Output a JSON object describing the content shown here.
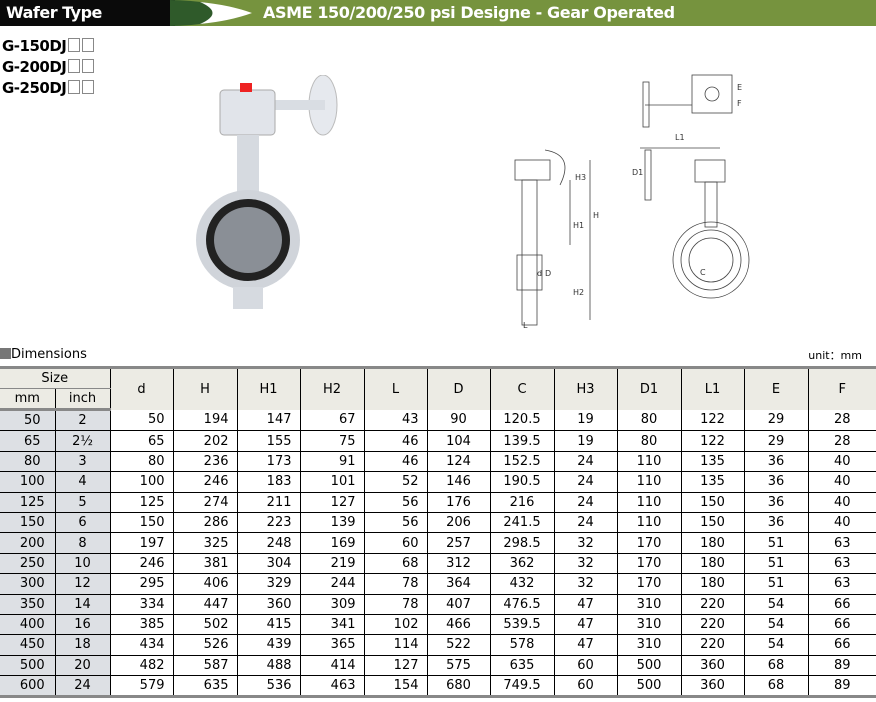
{
  "header": {
    "type": "Wafer Type",
    "subtitle": "ASME 150/200/250 psi Designe - Gear Operated"
  },
  "models": [
    "G-150DJ",
    "G-200DJ",
    "G-250DJ"
  ],
  "section_title": "Dimensions",
  "unit": "unit：mm",
  "drawing_labels": {
    "H3": "H3",
    "H": "H",
    "H1": "H1",
    "H2": "H2",
    "d": "d",
    "D": "D",
    "L": "L",
    "E": "E",
    "F": "F",
    "L1": "L1",
    "D1": "D1",
    "C": "C"
  },
  "table": {
    "size_label": "Size",
    "mm_label": "mm",
    "inch_label": "inch",
    "columns": [
      "d",
      "H",
      "H1",
      "H2",
      "L",
      "D",
      "C",
      "H3",
      "D1",
      "L1",
      "E",
      "F"
    ],
    "rows": [
      [
        "50",
        "2",
        "50",
        "194",
        "147",
        "67",
        "43",
        "90",
        "120.5",
        "19",
        "80",
        "122",
        "29",
        "28"
      ],
      [
        "65",
        "2½",
        "65",
        "202",
        "155",
        "75",
        "46",
        "104",
        "139.5",
        "19",
        "80",
        "122",
        "29",
        "28"
      ],
      [
        "80",
        "3",
        "80",
        "236",
        "173",
        "91",
        "46",
        "124",
        "152.5",
        "24",
        "110",
        "135",
        "36",
        "40"
      ],
      [
        "100",
        "4",
        "100",
        "246",
        "183",
        "101",
        "52",
        "146",
        "190.5",
        "24",
        "110",
        "135",
        "36",
        "40"
      ],
      [
        "125",
        "5",
        "125",
        "274",
        "211",
        "127",
        "56",
        "176",
        "216",
        "24",
        "110",
        "150",
        "36",
        "40"
      ],
      [
        "150",
        "6",
        "150",
        "286",
        "223",
        "139",
        "56",
        "206",
        "241.5",
        "24",
        "110",
        "150",
        "36",
        "40"
      ],
      [
        "200",
        "8",
        "197",
        "325",
        "248",
        "169",
        "60",
        "257",
        "298.5",
        "32",
        "170",
        "180",
        "51",
        "63"
      ],
      [
        "250",
        "10",
        "246",
        "381",
        "304",
        "219",
        "68",
        "312",
        "362",
        "32",
        "170",
        "180",
        "51",
        "63"
      ],
      [
        "300",
        "12",
        "295",
        "406",
        "329",
        "244",
        "78",
        "364",
        "432",
        "32",
        "170",
        "180",
        "51",
        "63"
      ],
      [
        "350",
        "14",
        "334",
        "447",
        "360",
        "309",
        "78",
        "407",
        "476.5",
        "47",
        "310",
        "220",
        "54",
        "66"
      ],
      [
        "400",
        "16",
        "385",
        "502",
        "415",
        "341",
        "102",
        "466",
        "539.5",
        "47",
        "310",
        "220",
        "54",
        "66"
      ],
      [
        "450",
        "18",
        "434",
        "526",
        "439",
        "365",
        "114",
        "522",
        "578",
        "47",
        "310",
        "220",
        "54",
        "66"
      ],
      [
        "500",
        "20",
        "482",
        "587",
        "488",
        "414",
        "127",
        "575",
        "635",
        "60",
        "500",
        "360",
        "68",
        "89"
      ],
      [
        "600",
        "24",
        "579",
        "635",
        "536",
        "463",
        "154",
        "680",
        "749.5",
        "60",
        "500",
        "360",
        "68",
        "89"
      ]
    ]
  }
}
